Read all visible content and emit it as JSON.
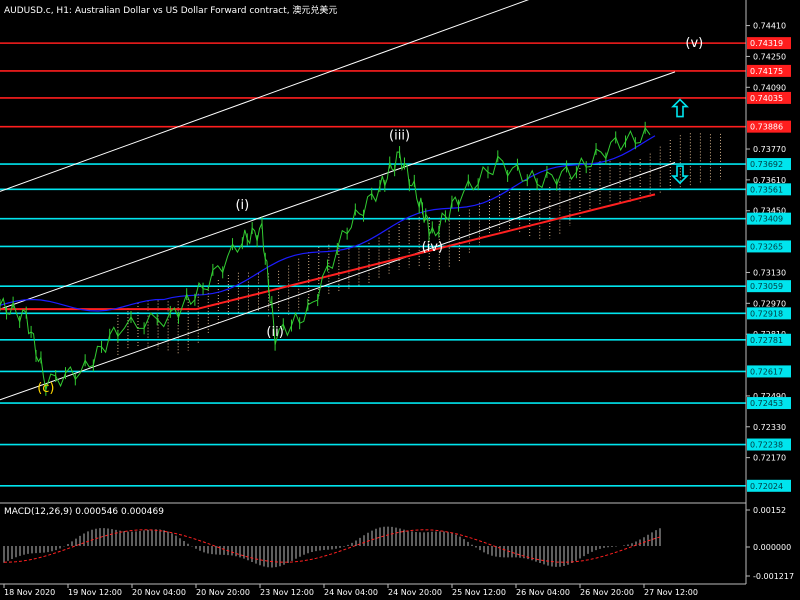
{
  "window": {
    "title": "AUDUSD.c, H1:  Australian Dollar vs US Dollar Forward contract, 澳元兑美元",
    "macd_title": "MACD(12,26,9) 0.000546 0.000469"
  },
  "colors": {
    "background": "#000000",
    "price_line": "#32cd32",
    "resistance": "#ff1e1e",
    "support": "#00e5ee",
    "channel": "#ffffff",
    "ma_red": "#ff2020",
    "ma_blue": "#1c1cff",
    "cloud": "#d7b48c",
    "wave_label": "#ffffff",
    "wave_c_label": "#ffd700"
  },
  "price_axis": {
    "min": 0.7194,
    "max": 0.7447,
    "ticks": [
      "0.74410",
      "0.74250",
      "0.74090",
      "0.73770",
      "0.73610",
      "0.73450",
      "0.73130",
      "0.72970",
      "0.72810",
      "0.72490",
      "0.72330",
      "0.72170"
    ]
  },
  "levels": {
    "resistance": [
      "0.74319",
      "0.74175",
      "0.74035",
      "0.73886"
    ],
    "support": [
      "0.73692",
      "0.73561",
      "0.73409",
      "0.73265",
      "0.73059",
      "0.72918",
      "0.72781",
      "0.72617",
      "0.72453",
      "0.72238",
      "0.72024"
    ]
  },
  "time_axis": [
    "18 Nov 2020",
    "19 Nov 12:00",
    "20 Nov 04:00",
    "20 Nov 20:00",
    "23 Nov 12:00",
    "24 Nov 04:00",
    "24 Nov 20:00",
    "25 Nov 12:00",
    "26 Nov 04:00",
    "26 Nov 20:00",
    "27 Nov 12:00"
  ],
  "waves": [
    {
      "label": "(c)",
      "price": 0.7251,
      "time": 0.07
    },
    {
      "label": "(i)",
      "price": 0.7346,
      "time": 0.37
    },
    {
      "label": "(ii)",
      "price": 0.728,
      "time": 0.42
    },
    {
      "label": "(iii)",
      "price": 0.7382,
      "time": 0.61
    },
    {
      "label": "(iv)",
      "price": 0.7324,
      "time": 0.66
    },
    {
      "label": "(v)",
      "price": 0.743,
      "time": 1.06
    }
  ],
  "arrows": [
    {
      "direction": "up",
      "price": 0.7398
    },
    {
      "direction": "down",
      "price": 0.7364
    }
  ],
  "macd_axis": {
    "ticks": [
      "0.00152",
      "0.000000",
      "-0.001217"
    ]
  }
}
